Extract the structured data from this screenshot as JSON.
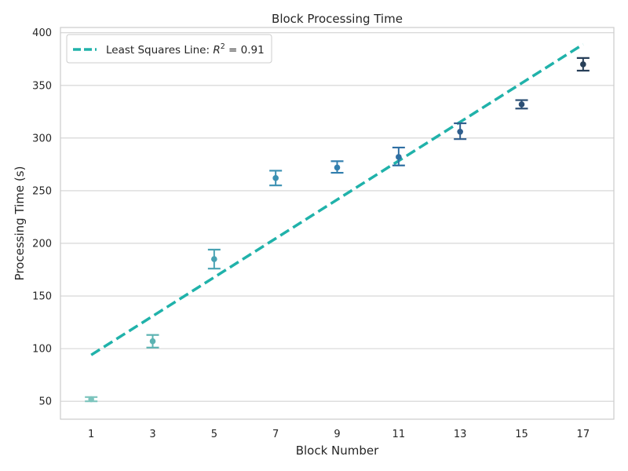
{
  "chart_data": {
    "type": "scatter",
    "title": "Block Processing Time",
    "xlabel": "Block Number",
    "ylabel": "Processing Time (s)",
    "x": [
      1,
      3,
      5,
      7,
      9,
      11,
      13,
      15,
      17
    ],
    "series": [
      {
        "values": [
          52,
          107,
          185,
          262,
          272,
          282,
          306,
          332,
          370
        ],
        "err_low": [
          50,
          101,
          176,
          255,
          267,
          274,
          299,
          328,
          364
        ],
        "err_high": [
          54,
          113,
          194,
          269,
          278,
          291,
          314,
          336,
          376
        ],
        "colors": [
          "#7cc4bd",
          "#5cb3b2",
          "#48a2b3",
          "#3a90b2",
          "#327fae",
          "#2f6fa3",
          "#2f5e8d",
          "#2c4f74",
          "#273f58"
        ]
      }
    ],
    "fit_line": {
      "label_main": "Least Squares Line: ",
      "label_r": "R",
      "label_sup": "2",
      "label_value": " = 0.91",
      "x": [
        1,
        17
      ],
      "y": [
        94,
        389
      ],
      "color": "#20b2aa",
      "style": "dashed"
    },
    "xticks": [
      "1",
      "3",
      "5",
      "7",
      "9",
      "11",
      "13",
      "15",
      "17"
    ],
    "yticks": [
      "50",
      "100",
      "150",
      "200",
      "250",
      "300",
      "350",
      "400"
    ],
    "xlim": [
      0,
      18
    ],
    "ylim": [
      33,
      405
    ],
    "grid": "horizontal",
    "legend_position": "upper-left"
  }
}
